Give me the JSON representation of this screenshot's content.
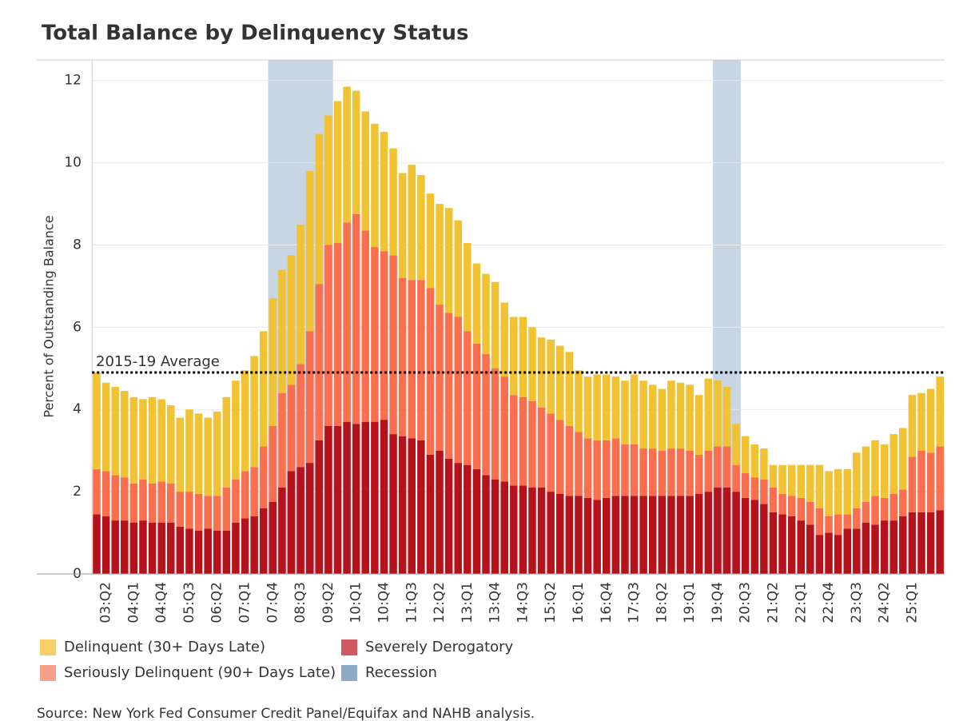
{
  "chart_data": {
    "type": "stacked_bar",
    "title": "Total Balance by Delinquency Status",
    "y_label": "Percent of Outstanding Balance",
    "source": "Source: New York Fed Consumer Credit Panel/Equifax and NAHB analysis.",
    "categories": [
      null,
      "03:Q2",
      null,
      null,
      "04:Q1",
      null,
      null,
      "04:Q4",
      null,
      null,
      "05:Q3",
      null,
      null,
      "06:Q2",
      null,
      null,
      "07:Q1",
      null,
      null,
      "07:Q4",
      null,
      null,
      "08:Q3",
      null,
      null,
      "09:Q2",
      null,
      null,
      "10:Q1",
      null,
      null,
      "10:Q4",
      null,
      null,
      "11:Q3",
      null,
      null,
      "12:Q2",
      null,
      null,
      "13:Q1",
      null,
      null,
      "13:Q4",
      null,
      null,
      "14:Q3",
      null,
      null,
      "15:Q2",
      null,
      null,
      "16:Q1",
      null,
      null,
      "16:Q4",
      null,
      null,
      "17:Q3",
      null,
      null,
      "18:Q2",
      null,
      null,
      "19:Q1",
      null,
      null,
      "19:Q4",
      null,
      null,
      "20:Q3",
      null,
      null,
      "21:Q2",
      null,
      null,
      "22:Q1",
      null,
      null,
      "22:Q4",
      null,
      null,
      "23:Q3",
      null,
      null,
      "24:Q2",
      null,
      null,
      "25:Q1",
      null,
      null,
      null
    ],
    "series": [
      {
        "name": "Severely Derogatory",
        "color": "#b5121b",
        "legend_color": "#d05a64",
        "values": [
          1.45,
          1.4,
          1.3,
          1.3,
          1.25,
          1.3,
          1.25,
          1.25,
          1.25,
          1.15,
          1.1,
          1.05,
          1.1,
          1.05,
          1.05,
          1.25,
          1.35,
          1.4,
          1.6,
          1.75,
          2.1,
          2.5,
          2.6,
          2.7,
          3.25,
          3.6,
          3.6,
          3.7,
          3.65,
          3.7,
          3.7,
          3.75,
          3.4,
          3.35,
          3.3,
          3.25,
          2.9,
          3.0,
          2.8,
          2.7,
          2.65,
          2.55,
          2.4,
          2.3,
          2.25,
          2.15,
          2.15,
          2.1,
          2.1,
          2.0,
          1.95,
          1.9,
          1.9,
          1.85,
          1.8,
          1.85,
          1.9,
          1.9,
          1.9,
          1.9,
          1.9,
          1.9,
          1.9,
          1.9,
          1.9,
          1.95,
          2.0,
          2.1,
          2.1,
          2.0,
          1.85,
          1.8,
          1.7,
          1.5,
          1.45,
          1.4,
          1.3,
          1.2,
          0.95,
          1.0,
          0.95,
          1.1,
          1.1,
          1.25,
          1.2,
          1.3,
          1.3,
          1.4,
          1.5,
          1.5,
          1.5,
          1.55
        ]
      },
      {
        "name": "Seriously Delinquent (90+ Days Late)",
        "color": "#fb6e4e",
        "legend_color": "#f9a08a",
        "values": [
          1.1,
          1.1,
          1.1,
          1.05,
          0.95,
          1.0,
          0.95,
          1.0,
          0.95,
          0.85,
          0.9,
          0.9,
          0.8,
          0.85,
          1.05,
          1.05,
          1.15,
          1.2,
          1.5,
          1.85,
          2.3,
          2.1,
          2.5,
          3.2,
          3.8,
          4.4,
          4.45,
          4.85,
          5.1,
          4.65,
          4.25,
          4.1,
          4.35,
          3.85,
          3.85,
          3.9,
          4.05,
          3.55,
          3.55,
          3.55,
          3.25,
          3.05,
          2.95,
          2.7,
          2.55,
          2.2,
          2.15,
          2.1,
          1.95,
          1.9,
          1.8,
          1.7,
          1.55,
          1.45,
          1.45,
          1.4,
          1.4,
          1.25,
          1.25,
          1.15,
          1.15,
          1.1,
          1.15,
          1.15,
          1.1,
          0.95,
          1.0,
          1.0,
          1.0,
          0.65,
          0.6,
          0.55,
          0.6,
          0.6,
          0.5,
          0.5,
          0.55,
          0.55,
          0.65,
          0.4,
          0.5,
          0.35,
          0.5,
          0.5,
          0.7,
          0.55,
          0.65,
          0.65,
          1.35,
          1.5,
          1.45,
          1.55
        ]
      },
      {
        "name": "Delinquent (30+ Days Late)",
        "color": "#f1c232",
        "legend_color": "#f5cf6a",
        "values": [
          2.35,
          2.15,
          2.15,
          2.1,
          2.1,
          1.95,
          2.1,
          2.0,
          1.9,
          1.8,
          2.0,
          1.95,
          1.9,
          2.05,
          2.2,
          2.4,
          2.45,
          2.7,
          2.8,
          3.1,
          3.0,
          3.15,
          3.4,
          3.9,
          3.65,
          3.15,
          3.45,
          3.3,
          3.0,
          2.9,
          3.0,
          2.9,
          2.6,
          2.55,
          2.8,
          2.55,
          2.3,
          2.45,
          2.55,
          2.35,
          2.15,
          1.95,
          1.95,
          2.1,
          1.8,
          1.9,
          1.95,
          1.8,
          1.7,
          1.8,
          1.8,
          1.8,
          1.5,
          1.5,
          1.6,
          1.6,
          1.5,
          1.55,
          1.7,
          1.65,
          1.55,
          1.5,
          1.65,
          1.6,
          1.6,
          1.45,
          1.75,
          1.6,
          1.45,
          1.0,
          0.9,
          0.8,
          0.75,
          0.55,
          0.7,
          0.75,
          0.8,
          0.9,
          1.05,
          1.1,
          1.1,
          1.1,
          1.35,
          1.35,
          1.35,
          1.3,
          1.45,
          1.5,
          1.5,
          1.4,
          1.55,
          1.7
        ]
      }
    ],
    "recession": {
      "name": "Recession",
      "color": "#c8d5e3",
      "legend_color": "#8fa9c8",
      "spans": [
        [
          19,
          26
        ],
        [
          67,
          70
        ]
      ]
    },
    "reference_line": {
      "label": "2015-19 Average",
      "value": 4.9
    },
    "ylim": [
      0,
      12.5
    ],
    "yticks": [
      0,
      2,
      4,
      6,
      8,
      10,
      12
    ],
    "grid": true
  }
}
